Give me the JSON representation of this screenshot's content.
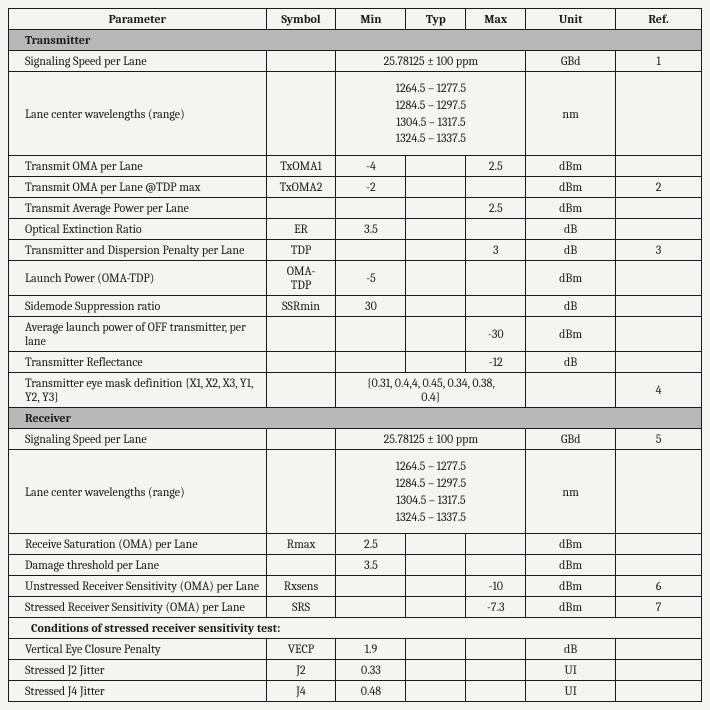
{
  "colors": {
    "background": "#f4f5f3",
    "border": "#1a1a1a",
    "text": "#1a1a1a",
    "section_bg": "#b8b8b8"
  },
  "typography": {
    "font_family": "Cambria, Georgia, serif",
    "base_fontsize": 12,
    "header_bold": true
  },
  "headers": {
    "parameter": "Parameter",
    "symbol": "Symbol",
    "min": "Min",
    "typ": "Typ",
    "max": "Max",
    "unit": "Unit",
    "ref": "Ref."
  },
  "sections": {
    "transmitter": "Transmitter",
    "receiver": "Receiver",
    "stressed": "Conditions of stressed receiver sensitivity test:"
  },
  "tx": {
    "r0": {
      "param": "Signaling Speed per Lane",
      "span": "25.78125 ± 100 ppm",
      "unit": "GBd",
      "ref": "1"
    },
    "r1": {
      "param": "Lane center wavelengths (range)",
      "l1": "1264.5 – 1277.5",
      "l2": "1284.5 – 1297.5",
      "l3": "1304.5 – 1317.5",
      "l4": "1324.5 – 1337.5",
      "unit": "nm"
    },
    "r2": {
      "param": "Transmit OMA per Lane",
      "sym": "TxOMA1",
      "min": "-4",
      "max": "2.5",
      "unit": "dBm"
    },
    "r3": {
      "param": "Transmit OMA per Lane @TDP max",
      "sym": "TxOMA2",
      "min": "-2",
      "unit": "dBm",
      "ref": "2"
    },
    "r4": {
      "param": "Transmit Average Power per Lane",
      "max": "2.5",
      "unit": "dBm"
    },
    "r5": {
      "param": "Optical Extinction Ratio",
      "sym": "ER",
      "min": "3.5",
      "unit": "dB"
    },
    "r6": {
      "param": "Transmitter and Dispersion Penalty per Lane",
      "sym": "TDP",
      "max": "3",
      "unit": "dB",
      "ref": "3"
    },
    "r7": {
      "param": "Launch Power (OMA-TDP)",
      "sym1": "OMA-",
      "sym2": "TDP",
      "min": "-5",
      "unit": "dBm"
    },
    "r8": {
      "param": "Sidemode Suppression ratio",
      "sym": "SSRmin",
      "min": "30",
      "unit": "dB"
    },
    "r9": {
      "param": "Average launch power of OFF transmitter, per lane",
      "max": "-30",
      "unit": "dBm"
    },
    "r10": {
      "param": "Transmitter Reflectance",
      "max": "-12",
      "unit": "dB"
    },
    "r11": {
      "param": "Transmitter eye mask definition {X1, X2, X3, Y1, Y2, Y3}",
      "span1": "{0.31, 0.4,4, 0.45, 0.34, 0.38,",
      "span2": "0.4}",
      "ref": "4"
    }
  },
  "rx": {
    "r0": {
      "param": "Signaling Speed per Lane",
      "span": "25.78125 ± 100 ppm",
      "unit": "GBd",
      "ref": "5"
    },
    "r1": {
      "param": "Lane center wavelengths (range)",
      "l1": "1264.5 – 1277.5",
      "l2": "1284.5 – 1297.5",
      "l3": "1304.5 – 1317.5",
      "l4": "1324.5 – 1337.5",
      "unit": "nm"
    },
    "r2": {
      "param": "Receive Saturation (OMA) per Lane",
      "sym": "Rmax",
      "min": "2.5",
      "unit": "dBm"
    },
    "r3": {
      "param": "Damage threshold per Lane",
      "min": "3.5",
      "unit": "dBm"
    },
    "r4": {
      "param": "Unstressed Receiver Sensitivity (OMA) per Lane",
      "sym": "Rxsens",
      "max": "-10",
      "unit": "dBm",
      "ref": "6"
    },
    "r5": {
      "param": "Stressed Receiver Sensitivity (OMA) per Lane",
      "sym": "SRS",
      "max": "-7.3",
      "unit": "dBm",
      "ref": "7"
    }
  },
  "st": {
    "r0": {
      "param": "Vertical Eye Closure Penalty",
      "sym": "VECP",
      "min": "1.9",
      "unit": "dB"
    },
    "r1": {
      "param": "Stressed J2 Jitter",
      "sym": "J2",
      "min": "0.33",
      "unit": "UI"
    },
    "r2": {
      "param": "Stressed J4 Jitter",
      "sym": "J4",
      "min": "0.48",
      "unit": "UI"
    }
  }
}
